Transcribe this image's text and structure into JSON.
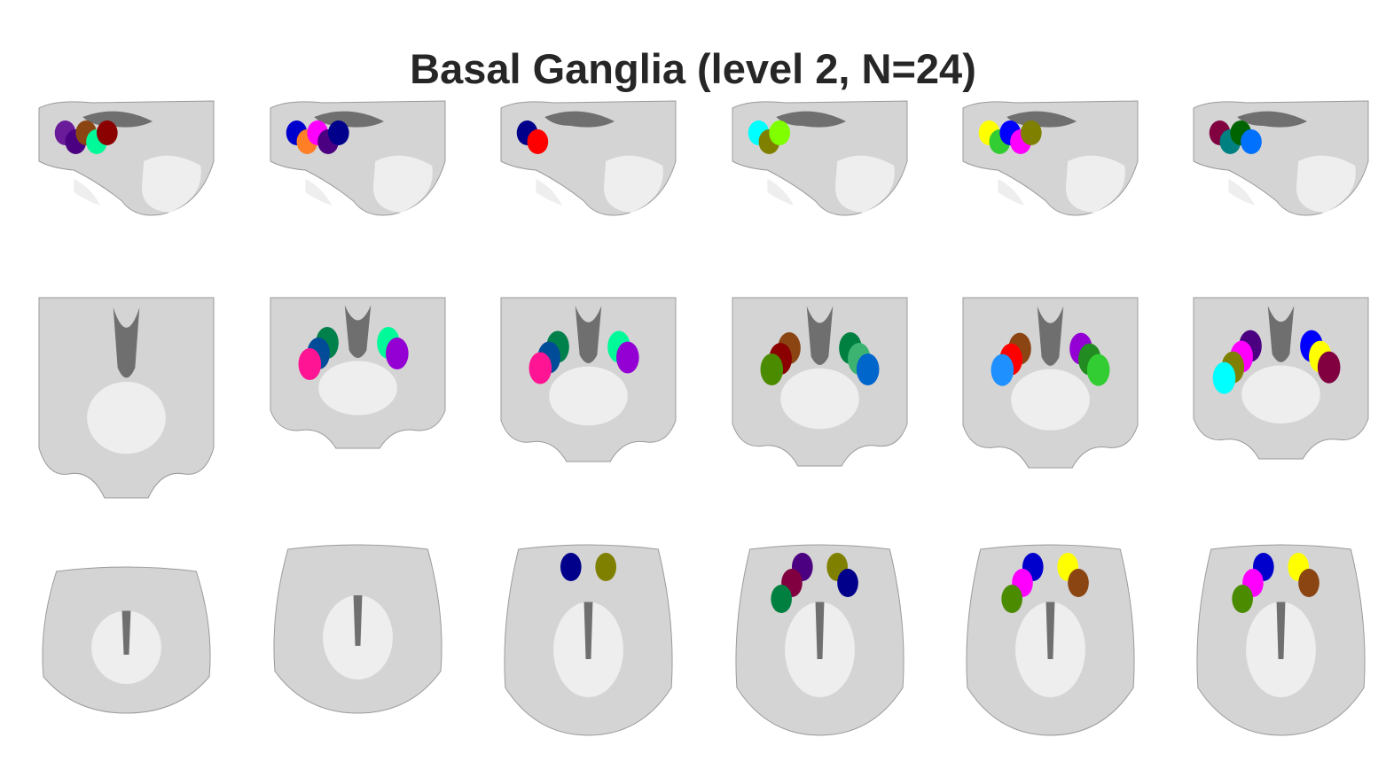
{
  "figure": {
    "title": "Basal Ganglia (level 2, N=24)",
    "background_color": "#ffffff",
    "title_color": "#262626"
  },
  "brain_colors": {
    "tissue": "#d4d4d4",
    "light": "#eeeeee",
    "dark": "#6f6f6f",
    "outline": "#9a9a9a"
  },
  "rows": [
    {
      "view": "sagittal",
      "panels": [
        {
          "parcel_colors": [
            "#6a1b9a",
            "#4b0082",
            "#8b4513",
            "#00fa9a",
            "#8b0000"
          ]
        },
        {
          "parcel_colors": [
            "#0000cd",
            "#ff7f27",
            "#ff00ff",
            "#4b0082",
            "#00008b"
          ]
        },
        {
          "parcel_colors": [
            "#00008b",
            "#ff0000"
          ]
        },
        {
          "parcel_colors": [
            "#00ffff",
            "#808000",
            "#7fff00"
          ]
        },
        {
          "parcel_colors": [
            "#ffff00",
            "#32cd32",
            "#0000ff",
            "#ff00ff",
            "#808000"
          ]
        },
        {
          "parcel_colors": [
            "#800040",
            "#008080",
            "#006400",
            "#0070ff"
          ]
        }
      ]
    },
    {
      "view": "coronal",
      "panels": [
        {
          "parcel_colors": []
        },
        {
          "parcel_colors": [
            "#00804a",
            "#00fa9a",
            "#004c99",
            "#9400d3",
            "#ff1493"
          ]
        },
        {
          "parcel_colors": [
            "#00804a",
            "#00fa9a",
            "#004c99",
            "#9400d3",
            "#ff1493"
          ]
        },
        {
          "parcel_colors": [
            "#8b4513",
            "#008040",
            "#8b0000",
            "#3cb371",
            "#4b8b00",
            "#0066cc"
          ]
        },
        {
          "parcel_colors": [
            "#8b4513",
            "#9400d3",
            "#ff0000",
            "#228b22",
            "#1e90ff",
            "#32cd32"
          ]
        },
        {
          "parcel_colors": [
            "#4b0082",
            "#0000ff",
            "#ff00ff",
            "#ffff00",
            "#808000",
            "#800040",
            "#00ffff"
          ]
        }
      ]
    },
    {
      "view": "axial",
      "panels": [
        {
          "parcel_colors": []
        },
        {
          "parcel_colors": []
        },
        {
          "parcel_colors": [
            "#00008b",
            "#808000"
          ]
        },
        {
          "parcel_colors": [
            "#4b0082",
            "#808000",
            "#800040",
            "#00008b",
            "#008040"
          ]
        },
        {
          "parcel_colors": [
            "#0000cd",
            "#ffff00",
            "#ff00ff",
            "#8b4513",
            "#4b8b00"
          ]
        },
        {
          "parcel_colors": [
            "#0000cd",
            "#ffff00",
            "#ff00ff",
            "#8b4513",
            "#4b8b00"
          ]
        }
      ]
    }
  ]
}
